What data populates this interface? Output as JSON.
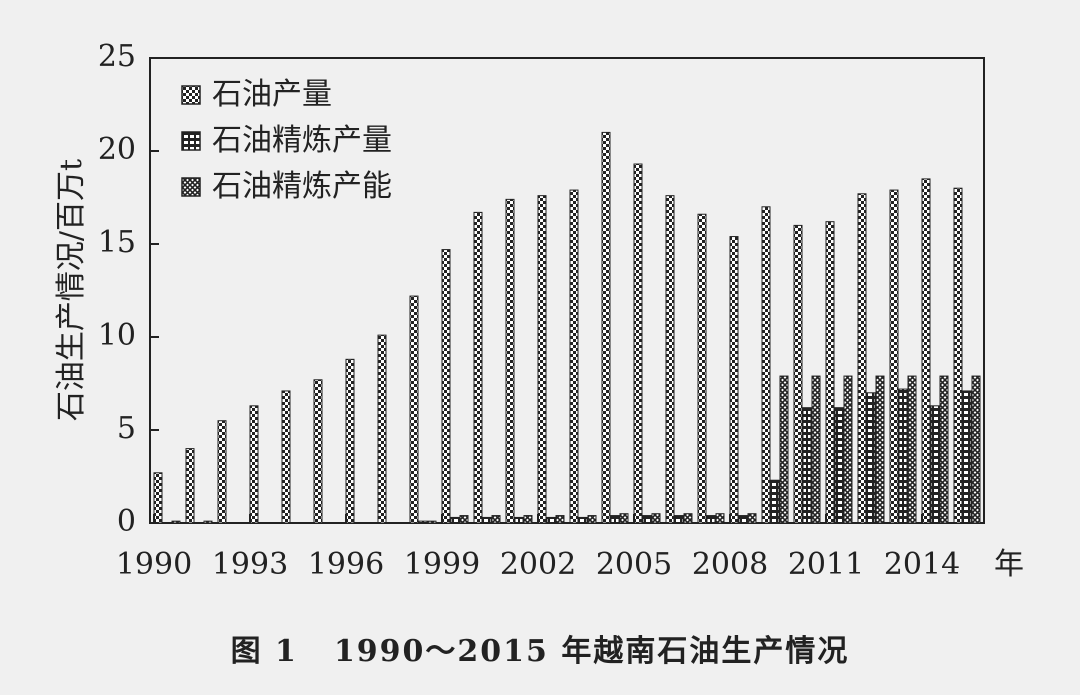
{
  "chart_data": {
    "type": "bar",
    "ylabel": "石油生产情况/百万t",
    "xunit": "年",
    "ylim": [
      0,
      25
    ],
    "yticks": [
      0,
      5,
      10,
      15,
      20,
      25
    ],
    "xtick_labels": [
      "1990",
      "1993",
      "1996",
      "1999",
      "2002",
      "2005",
      "2008",
      "2011",
      "2014"
    ],
    "categories": [
      "1990",
      "1991",
      "1992",
      "1993",
      "1994",
      "1995",
      "1996",
      "1997",
      "1998",
      "1999",
      "2000",
      "2001",
      "2002",
      "2003",
      "2004",
      "2005",
      "2006",
      "2007",
      "2008",
      "2009",
      "2010",
      "2011",
      "2012",
      "2013",
      "2014",
      "2015"
    ],
    "legend_position": "top-left",
    "series": [
      {
        "name": "石油产量",
        "pattern": "checker",
        "values": [
          2.7,
          4.0,
          5.5,
          6.3,
          7.1,
          7.7,
          8.8,
          10.1,
          12.2,
          14.7,
          16.7,
          17.4,
          17.6,
          17.9,
          21.0,
          19.3,
          17.6,
          16.6,
          15.4,
          17.0,
          16.0,
          16.2,
          17.7,
          17.9,
          18.5,
          18.0
        ]
      },
      {
        "name": "石油精炼产量",
        "pattern": "hbar",
        "values": [
          0,
          0,
          0,
          0,
          0,
          0,
          0,
          0,
          0.1,
          0.3,
          0.3,
          0.3,
          0.3,
          0.3,
          0.4,
          0.4,
          0.4,
          0.4,
          0.4,
          2.3,
          6.2,
          6.2,
          7.0,
          7.2,
          6.3,
          7.1
        ]
      },
      {
        "name": "石油精炼产能",
        "pattern": "cross",
        "values": [
          0.1,
          0.1,
          0,
          0,
          0,
          0,
          0,
          0,
          0.1,
          0.4,
          0.4,
          0.4,
          0.4,
          0.4,
          0.5,
          0.5,
          0.5,
          0.5,
          0.5,
          7.9,
          7.9,
          7.9,
          7.9,
          7.9,
          7.9,
          7.9
        ]
      }
    ]
  },
  "caption": {
    "number": "图 1",
    "text": "1990～2015 年越南石油生产情况"
  }
}
